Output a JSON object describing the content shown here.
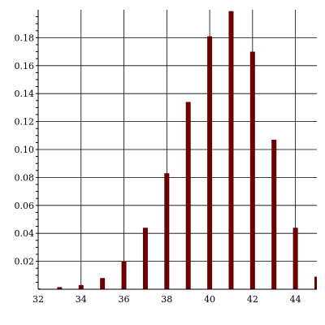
{
  "chart_data": {
    "type": "bar",
    "title": "",
    "xlabel": "",
    "ylabel": "",
    "x": [
      32,
      33,
      34,
      35,
      36,
      37,
      38,
      39,
      40,
      41,
      42,
      43,
      44,
      45
    ],
    "values": [
      0.0005,
      0.0015,
      0.003,
      0.008,
      0.02,
      0.044,
      0.083,
      0.134,
      0.181,
      0.199,
      0.17,
      0.107,
      0.044,
      0.009
    ],
    "xlim": [
      32,
      45
    ],
    "ylim": [
      0,
      0.2
    ],
    "xticks": [
      "32",
      "34",
      "36",
      "38",
      "40",
      "42",
      "44"
    ],
    "yticks": [
      "0.02",
      "0.04",
      "0.06",
      "0.08",
      "0.10",
      "0.12",
      "0.14",
      "0.16",
      "0.18"
    ],
    "grid": true,
    "bar_color": "#6b0000",
    "legend": "none"
  }
}
